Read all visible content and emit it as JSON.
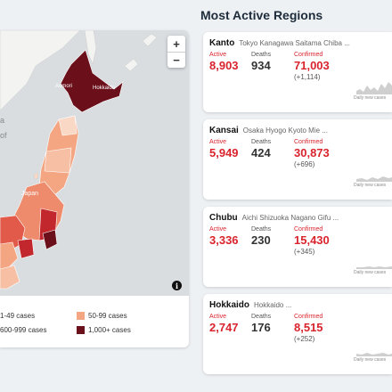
{
  "map": {
    "zoom_in": "+",
    "zoom_out": "−",
    "info": "i",
    "labels": {
      "aomori": "Aomori",
      "hokkaido": "Hokkaido",
      "japan": "Japan",
      "sea_a": "a",
      "sea_of": "of"
    },
    "legend": [
      {
        "label": "1-49 cases",
        "color": "#f9d8c6"
      },
      {
        "label": "50-99 cases",
        "color": "#f4a582"
      },
      {
        "label": "600-999 cases",
        "color": "#c1272d"
      },
      {
        "label": "1,000+ cases",
        "color": "#6b0f1a"
      }
    ]
  },
  "section_title": "Most Active Regions",
  "labels": {
    "active": "Active",
    "deaths": "Deaths",
    "confirmed": "Confirmed",
    "daily_new": "Daily new cases"
  },
  "regions": [
    {
      "name": "Kanto",
      "prefectures": "Tokyo Kanagawa Saitama Chiba ...",
      "active": "8,903",
      "deaths": "934",
      "confirmed": "71,003",
      "delta": "(+1,114)"
    },
    {
      "name": "Kansai",
      "prefectures": "Osaka Hyogo Kyoto Mie ...",
      "active": "5,949",
      "deaths": "424",
      "confirmed": "30,873",
      "delta": "(+696)"
    },
    {
      "name": "Chubu",
      "prefectures": "Aichi Shizuoka Nagano Gifu ...",
      "active": "3,336",
      "deaths": "230",
      "confirmed": "15,430",
      "delta": "(+345)"
    },
    {
      "name": "Hokkaido",
      "prefectures": "Hokkaido ...",
      "active": "2,747",
      "deaths": "176",
      "confirmed": "8,515",
      "delta": "(+252)"
    }
  ],
  "colors": {
    "accent_red": "#d9232d",
    "title": "#1d2b3a",
    "sea": "#d9dde0",
    "land": "#f3f3f1"
  }
}
